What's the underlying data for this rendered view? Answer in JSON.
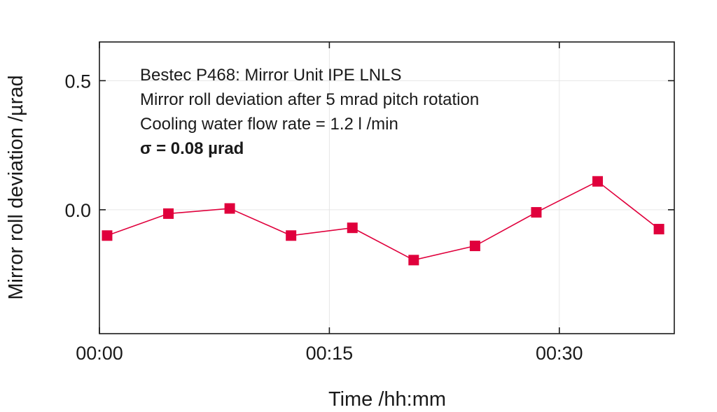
{
  "chart_data": {
    "type": "line",
    "xlabel": "Time /hh:mm",
    "ylabel": "Mirror roll deviation /µrad",
    "x_ticks": [
      "00:00",
      "00:15",
      "00:30"
    ],
    "x_tick_minutes": [
      0,
      15,
      30
    ],
    "xlim": [
      0,
      37.5
    ],
    "y_ticks": [
      "0.5",
      "0.0"
    ],
    "y_tick_values": [
      0.5,
      0.0
    ],
    "ylim": [
      -0.48,
      0.65
    ],
    "grid": true,
    "series": [
      {
        "color": "#e0003c",
        "marker": "square",
        "x": [
          "00:00",
          "00:04",
          "00:08",
          "00:12",
          "00:16",
          "00:20",
          "00:24",
          "00:28",
          "00:32",
          "00:36"
        ],
        "x_minutes": [
          0.5,
          4.5,
          8.5,
          12.5,
          16.5,
          20.5,
          24.5,
          28.5,
          32.5,
          36.5
        ],
        "values": [
          -0.1,
          -0.015,
          0.005,
          -0.1,
          -0.07,
          -0.195,
          -0.14,
          -0.01,
          0.11,
          -0.075
        ]
      }
    ],
    "annotations": [
      "Bestec P468: Mirror Unit IPE LNLS",
      "Mirror roll deviation after 5 mrad pitch rotation",
      "Cooling water flow rate = 1.2 l /min",
      "σ = 0.08 µrad"
    ]
  }
}
